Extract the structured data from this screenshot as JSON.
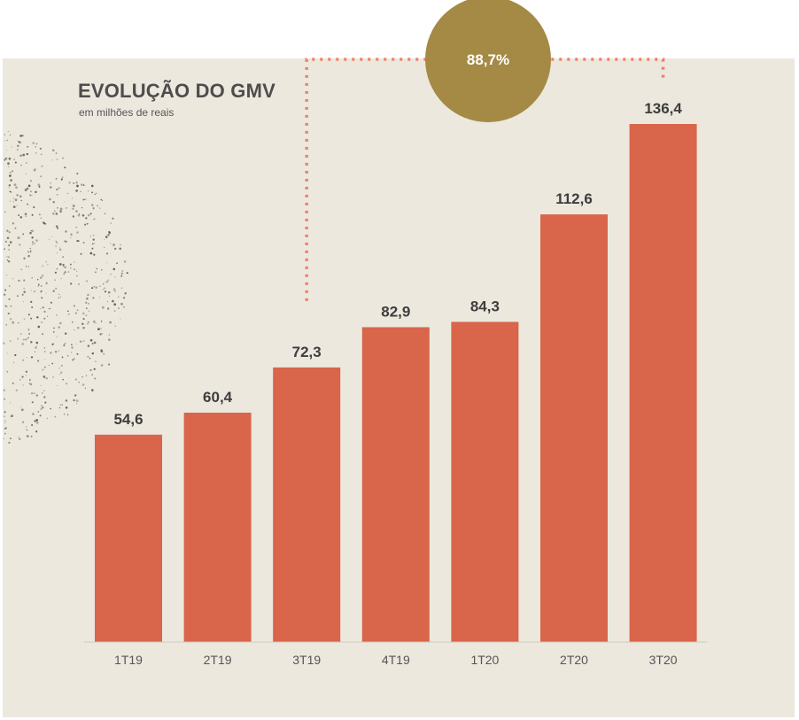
{
  "chart_data": {
    "type": "bar",
    "title": "EVOLUÇÃO DO GMV",
    "subtitle": "em milhões de reais",
    "categories": [
      "1T19",
      "2T19",
      "3T19",
      "4T19",
      "1T20",
      "2T20",
      "3T20"
    ],
    "values": [
      54.6,
      60.4,
      72.3,
      82.9,
      84.3,
      112.6,
      136.4
    ],
    "value_labels": [
      "54,6",
      "60,4",
      "72,3",
      "82,9",
      "84,3",
      "112,6",
      "136,4"
    ],
    "ylim": [
      0,
      136.4
    ],
    "grid": false,
    "annotation": {
      "label": "88,7%",
      "from_category": "3T19",
      "to_category": "3T20"
    }
  },
  "colors": {
    "bar": "#d9654a",
    "panel_background": "#ece8de",
    "annotation_circle": "#a48a45",
    "annotation_line": "#f0806a",
    "title_text": "#4d4d4d",
    "value_text": "#3d3d3d",
    "tick_text": "#555555",
    "texture_dots": "#4a4640"
  }
}
